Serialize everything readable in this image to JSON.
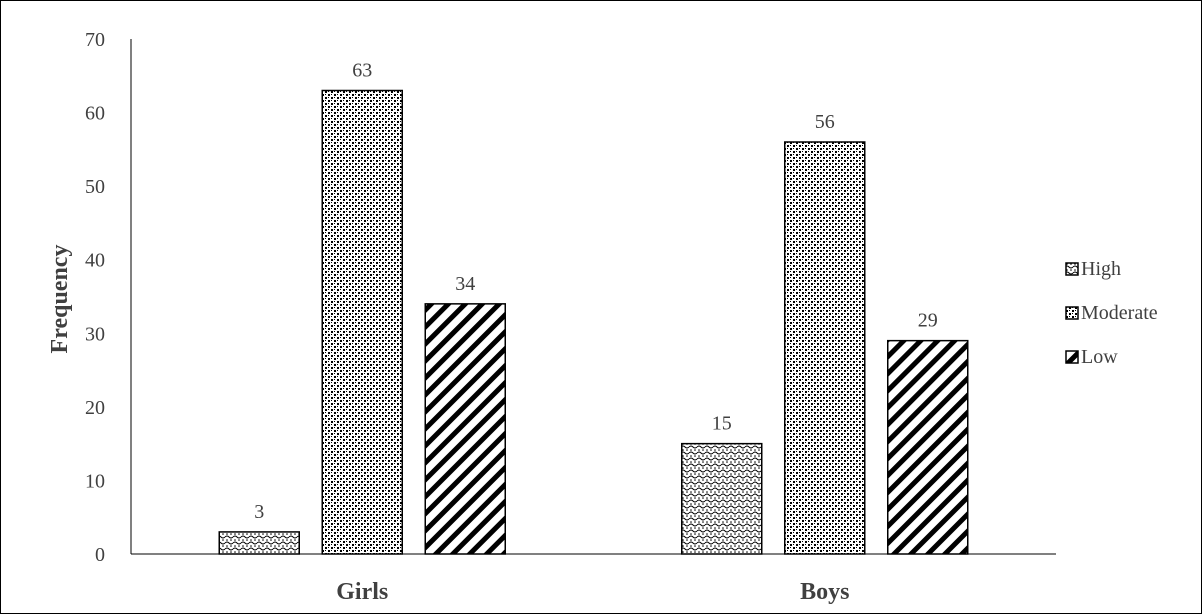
{
  "chart_data": {
    "type": "bar",
    "title": "",
    "xlabel": "",
    "ylabel": "Frequency",
    "ylim": [
      0,
      70
    ],
    "yticks": [
      0,
      10,
      20,
      30,
      40,
      50,
      60,
      70
    ],
    "categories": [
      "Girls",
      "Boys"
    ],
    "series": [
      {
        "name": "High",
        "values": [
          3,
          15
        ],
        "pattern": "wave-dots"
      },
      {
        "name": "Moderate",
        "values": [
          63,
          56
        ],
        "pattern": "checker-dots"
      },
      {
        "name": "Low",
        "values": [
          34,
          29
        ],
        "pattern": "diagonal-stripes"
      }
    ],
    "data_labels": true,
    "grid": false,
    "legend": "right",
    "colors": {
      "ink": "#000000",
      "text": "#404040",
      "background": "#ffffff"
    }
  }
}
